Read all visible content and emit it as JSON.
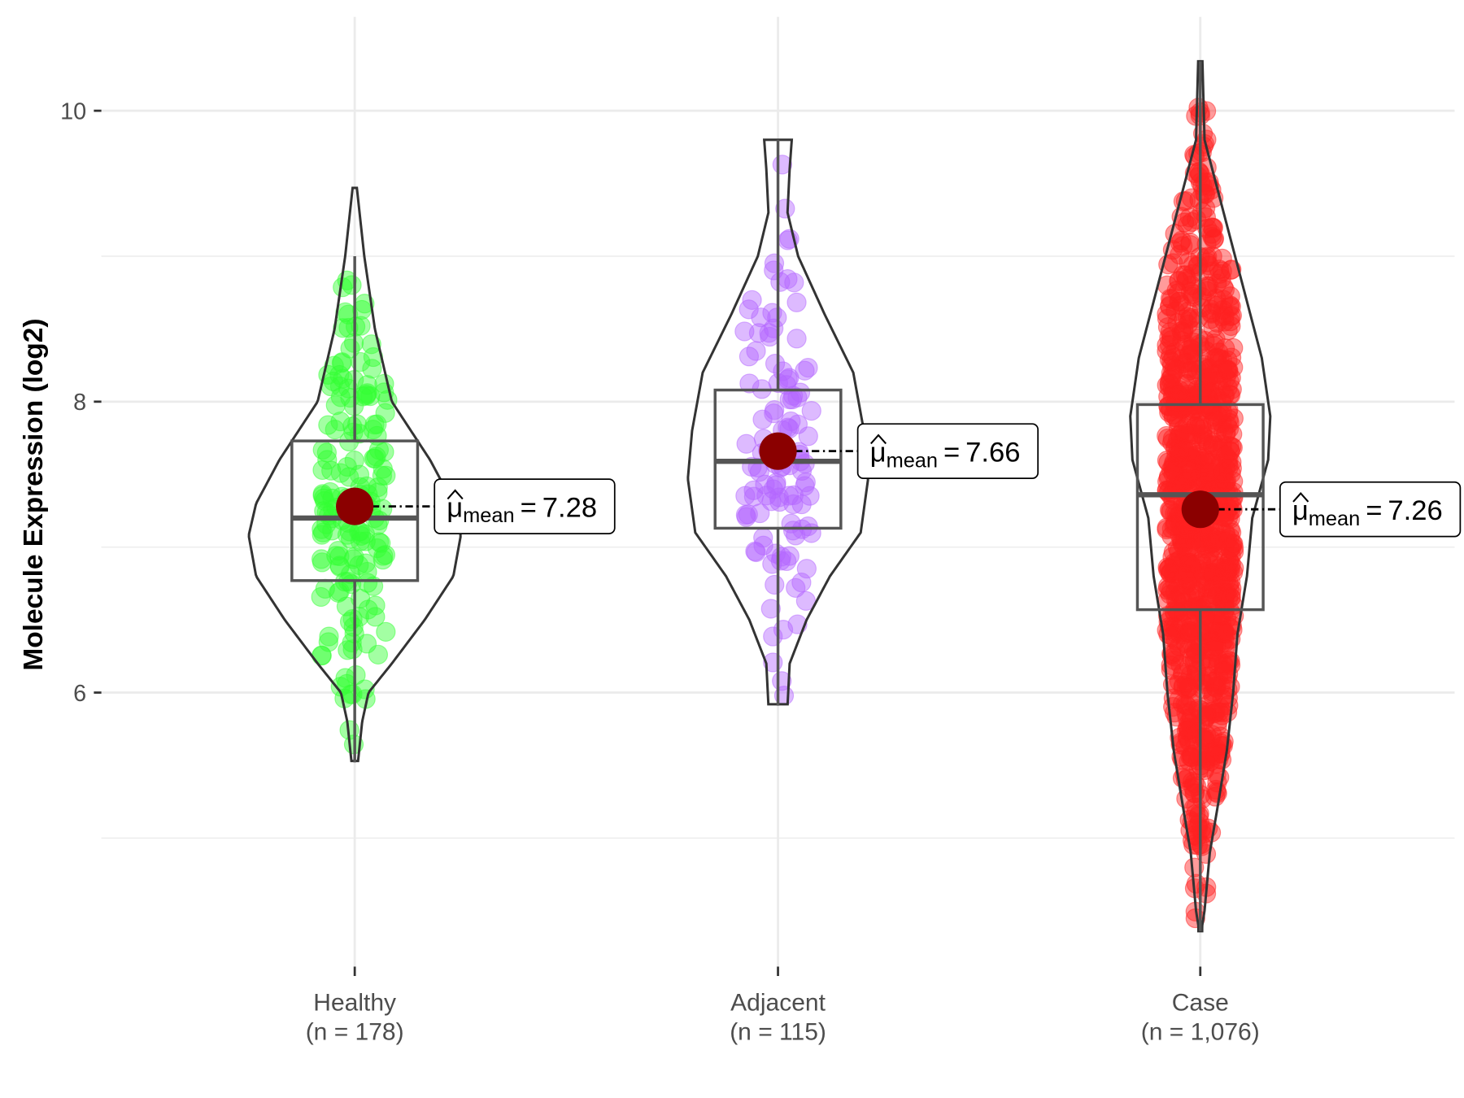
{
  "chart_data": {
    "type": "violin",
    "title": "",
    "xlabel": "",
    "ylabel": "Molecule Expression (log2)",
    "ylim": [
      4.2,
      10.65
    ],
    "yticks": [
      6,
      8,
      10
    ],
    "grid": true,
    "groups": [
      {
        "name": "Healthy",
        "n_label": "(n = 178)",
        "n": 178,
        "color": "#33ff33",
        "mean": 7.28,
        "mean_label": "7.28",
        "box": {
          "whisker_low": 5.52,
          "q1": 6.77,
          "median": 7.2,
          "q3": 7.73,
          "whisker_high": 9.0
        },
        "range": [
          5.52,
          9.47
        ],
        "density": [
          [
            5.52,
            0.03
          ],
          [
            5.8,
            0.07
          ],
          [
            6.0,
            0.13
          ],
          [
            6.2,
            0.35
          ],
          [
            6.5,
            0.66
          ],
          [
            6.8,
            0.93
          ],
          [
            7.08,
            1.0
          ],
          [
            7.3,
            0.93
          ],
          [
            7.6,
            0.71
          ],
          [
            8.0,
            0.35
          ],
          [
            8.5,
            0.19
          ],
          [
            9.0,
            0.09
          ],
          [
            9.47,
            0.02
          ]
        ]
      },
      {
        "name": "Adjacent",
        "n_label": "(n = 115)",
        "n": 115,
        "color": "#b366ff",
        "mean": 7.66,
        "mean_label": "7.66",
        "box": {
          "whisker_low": 5.91,
          "q1": 7.13,
          "median": 7.59,
          "q3": 8.08,
          "whisker_high": 9.8
        },
        "range": [
          5.91,
          9.8
        ],
        "density": [
          [
            5.91,
            0.09
          ],
          [
            6.2,
            0.11
          ],
          [
            6.5,
            0.27
          ],
          [
            6.8,
            0.49
          ],
          [
            7.1,
            0.78
          ],
          [
            7.47,
            0.85
          ],
          [
            7.8,
            0.81
          ],
          [
            8.2,
            0.71
          ],
          [
            8.6,
            0.44
          ],
          [
            9.0,
            0.19
          ],
          [
            9.3,
            0.09
          ],
          [
            9.6,
            0.11
          ],
          [
            9.8,
            0.13
          ]
        ]
      },
      {
        "name": "Case",
        "n_label": "(n = 1,076)",
        "n": 1076,
        "color": "#ff2222",
        "mean": 7.26,
        "mean_label": "7.26",
        "box": {
          "whisker_low": 4.36,
          "q1": 6.57,
          "median": 7.36,
          "q3": 7.98,
          "whisker_high": 10.34
        },
        "range": [
          4.36,
          10.34
        ],
        "density": [
          [
            4.36,
            0.01
          ],
          [
            4.5,
            0.04
          ],
          [
            4.9,
            0.09
          ],
          [
            5.2,
            0.16
          ],
          [
            5.6,
            0.25
          ],
          [
            6.0,
            0.31
          ],
          [
            6.4,
            0.35
          ],
          [
            6.8,
            0.44
          ],
          [
            7.2,
            0.49
          ],
          [
            7.6,
            0.64
          ],
          [
            7.9,
            0.66
          ],
          [
            8.3,
            0.58
          ],
          [
            8.8,
            0.4
          ],
          [
            9.3,
            0.22
          ],
          [
            9.8,
            0.04
          ],
          [
            10.34,
            0.02
          ]
        ]
      }
    ],
    "mean_symbol": "μ",
    "mean_subscript": "mean",
    "mean_equals": "="
  }
}
